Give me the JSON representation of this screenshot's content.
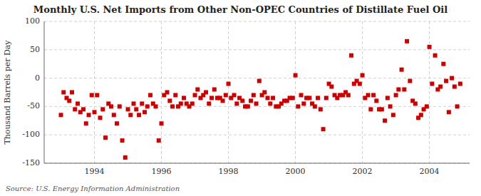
{
  "chart_data": {
    "type": "scatter",
    "title": "Monthly U.S. Net Imports from Other Non-OPEC Countries of Distillate Fuel Oil",
    "y_label": "Thousand Barrels per Day",
    "source": "Source: U.S. Energy Information Administration",
    "color": "#cc0000",
    "marker": "square",
    "grid": true,
    "xlim": [
      1992.5,
      2005.2
    ],
    "xticks": [
      1994,
      1996,
      1998,
      2000,
      2002,
      2004
    ],
    "ylim": [
      -150,
      100
    ],
    "yticks": [
      -150,
      -100,
      -50,
      0,
      50,
      100
    ],
    "x": [
      1993.0,
      1993.08,
      1993.17,
      1993.25,
      1993.33,
      1993.42,
      1993.5,
      1993.58,
      1993.67,
      1993.75,
      1993.83,
      1993.92,
      1994.0,
      1994.08,
      1994.17,
      1994.25,
      1994.33,
      1994.42,
      1994.5,
      1994.58,
      1994.67,
      1994.75,
      1994.83,
      1994.92,
      1995.0,
      1995.08,
      1995.17,
      1995.25,
      1995.33,
      1995.42,
      1995.5,
      1995.58,
      1995.67,
      1995.75,
      1995.83,
      1995.92,
      1996.0,
      1996.08,
      1996.17,
      1996.25,
      1996.33,
      1996.42,
      1996.5,
      1996.58,
      1996.67,
      1996.75,
      1996.83,
      1996.92,
      1997.0,
      1997.08,
      1997.17,
      1997.25,
      1997.33,
      1997.42,
      1997.5,
      1997.58,
      1997.67,
      1997.75,
      1997.83,
      1997.92,
      1998.0,
      1998.08,
      1998.17,
      1998.25,
      1998.33,
      1998.42,
      1998.5,
      1998.58,
      1998.67,
      1998.75,
      1998.83,
      1998.92,
      1999.0,
      1999.08,
      1999.17,
      1999.25,
      1999.33,
      1999.42,
      1999.5,
      1999.58,
      1999.67,
      1999.75,
      1999.83,
      1999.92,
      2000.0,
      2000.08,
      2000.17,
      2000.25,
      2000.33,
      2000.42,
      2000.5,
      2000.58,
      2000.67,
      2000.75,
      2000.83,
      2000.92,
      2001.0,
      2001.08,
      2001.17,
      2001.25,
      2001.33,
      2001.42,
      2001.5,
      2001.58,
      2001.67,
      2001.75,
      2001.83,
      2001.92,
      2002.0,
      2002.08,
      2002.17,
      2002.25,
      2002.33,
      2002.42,
      2002.5,
      2002.58,
      2002.67,
      2002.75,
      2002.83,
      2002.92,
      2003.0,
      2003.08,
      2003.17,
      2003.25,
      2003.33,
      2003.42,
      2003.5,
      2003.58,
      2003.67,
      2003.75,
      2003.83,
      2003.92,
      2004.0,
      2004.08,
      2004.17,
      2004.25,
      2004.33,
      2004.42,
      2004.5,
      2004.58,
      2004.67,
      2004.75,
      2004.83,
      2004.92
    ],
    "values": [
      -65,
      -25,
      -35,
      -40,
      -25,
      -55,
      -45,
      -60,
      -55,
      -80,
      -65,
      -30,
      -60,
      -30,
      -70,
      -55,
      -105,
      -45,
      -50,
      -65,
      -80,
      -50,
      -110,
      -140,
      -55,
      -65,
      -45,
      -55,
      -65,
      -45,
      -60,
      -50,
      -30,
      -45,
      -50,
      -110,
      -80,
      -30,
      -25,
      -40,
      -50,
      -30,
      -50,
      -45,
      -35,
      -45,
      -50,
      -45,
      -30,
      -20,
      -35,
      -30,
      -25,
      -45,
      -35,
      -20,
      -35,
      -35,
      -40,
      -30,
      -10,
      -35,
      -30,
      -45,
      -35,
      -40,
      -50,
      -50,
      -40,
      -30,
      -45,
      -5,
      -30,
      -25,
      -35,
      -45,
      -35,
      -50,
      -50,
      -45,
      -40,
      -40,
      -35,
      -35,
      5,
      -50,
      -30,
      -45,
      -35,
      -35,
      -45,
      -50,
      -35,
      -55,
      -90,
      -35,
      -10,
      -15,
      -30,
      -35,
      -30,
      -30,
      -25,
      -30,
      40,
      -10,
      -5,
      -10,
      5,
      -35,
      -30,
      -55,
      -30,
      -40,
      -55,
      -55,
      -75,
      -35,
      -50,
      -65,
      -30,
      -20,
      15,
      -20,
      65,
      -5,
      -40,
      -45,
      -70,
      -65,
      -55,
      -50,
      55,
      -10,
      40,
      -20,
      -15,
      25,
      -5,
      -60,
      0,
      -15,
      -50,
      -10
    ]
  }
}
